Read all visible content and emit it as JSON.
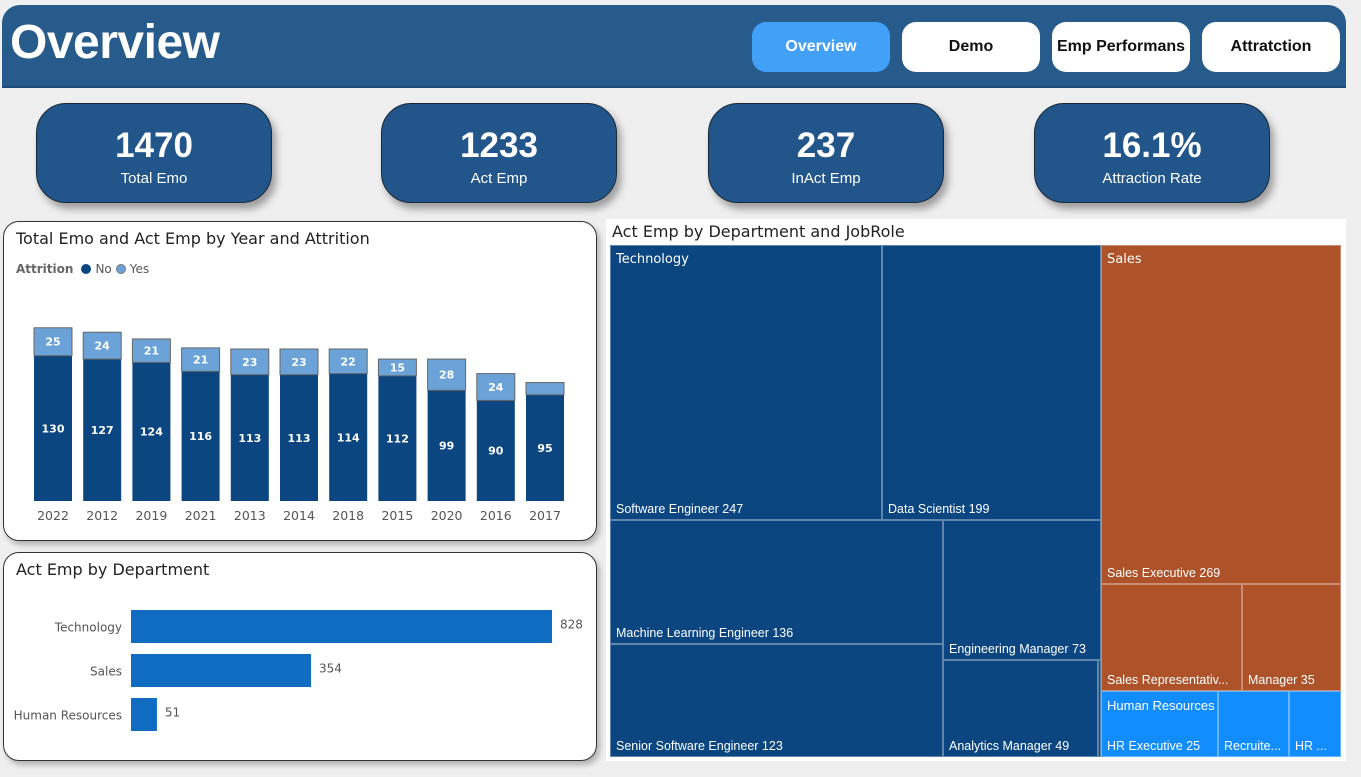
{
  "header": {
    "title": "Overview",
    "nav": [
      {
        "label": "Overview",
        "active": true
      },
      {
        "label": "Demo",
        "active": false
      },
      {
        "label": "Emp Performans",
        "active": false
      },
      {
        "label": "Attratction",
        "active": false
      }
    ]
  },
  "kpis": [
    {
      "value": "1470",
      "label": "Total Emo"
    },
    {
      "value": "1233",
      "label": "Act Emp"
    },
    {
      "value": "237",
      "label": "InAct Emp"
    },
    {
      "value": "16.1%",
      "label": "Attraction Rate"
    }
  ],
  "colors": {
    "no": "#0b4680",
    "yes": "#6ba3d8",
    "bar": "#0f6cc0",
    "technology": "#0b4680",
    "sales": "#ad5229",
    "hr": "#118dff"
  },
  "chart_data": [
    {
      "type": "bar",
      "stacked": true,
      "title": "Total Emo and Act Emp by Year and Attrition",
      "legend_title": "Attrition",
      "legend": [
        "No",
        "Yes"
      ],
      "categories": [
        "2022",
        "2012",
        "2019",
        "2021",
        "2013",
        "2014",
        "2018",
        "2015",
        "2020",
        "2016",
        "2017"
      ],
      "series": [
        {
          "name": "No",
          "values": [
            130,
            127,
            124,
            116,
            113,
            113,
            114,
            112,
            99,
            90,
            95
          ]
        },
        {
          "name": "Yes",
          "values": [
            25,
            24,
            21,
            21,
            23,
            23,
            22,
            15,
            28,
            24,
            11
          ],
          "labels_shown": [
            true,
            true,
            true,
            true,
            true,
            true,
            true,
            true,
            true,
            true,
            false
          ]
        }
      ],
      "xlabel": "",
      "ylabel": ""
    },
    {
      "type": "bar",
      "orientation": "horizontal",
      "title": "Act Emp by Department",
      "categories": [
        "Technology",
        "Sales",
        "Human Resources"
      ],
      "values": [
        828,
        354,
        51
      ]
    },
    {
      "type": "treemap",
      "title": "Act Emp by Department and JobRole",
      "groups": [
        {
          "name": "Technology",
          "items": [
            {
              "label": "Software Engineer 247",
              "role": "Software Engineer",
              "value": 247
            },
            {
              "label": "Data Scientist 199",
              "role": "Data Scientist",
              "value": 199
            },
            {
              "label": "Machine Learning Engineer 136",
              "role": "Machine Learning Engineer",
              "value": 136
            },
            {
              "label": "Senior Software Engineer 123",
              "role": "Senior Software Engineer",
              "value": 123
            },
            {
              "label": "Engineering Manager 73",
              "role": "Engineering Manager",
              "value": 73
            },
            {
              "label": "Analytics Manager 49",
              "role": "Analytics Manager",
              "value": 49
            }
          ]
        },
        {
          "name": "Sales",
          "items": [
            {
              "label": "Sales Executive 269",
              "role": "Sales Executive",
              "value": 269
            },
            {
              "label": "Sales Representativ...",
              "role": "Sales Representative",
              "value": 50
            },
            {
              "label": "Manager 35",
              "role": "Manager",
              "value": 35
            }
          ]
        },
        {
          "name": "Human Resources",
          "items": [
            {
              "label": "HR Executive 25",
              "role": "HR Executive",
              "value": 25
            },
            {
              "label": "Recruite...",
              "role": "Recruiter",
              "value": 16
            },
            {
              "label": "HR ...",
              "role": "HR",
              "value": 10
            }
          ]
        }
      ]
    }
  ]
}
